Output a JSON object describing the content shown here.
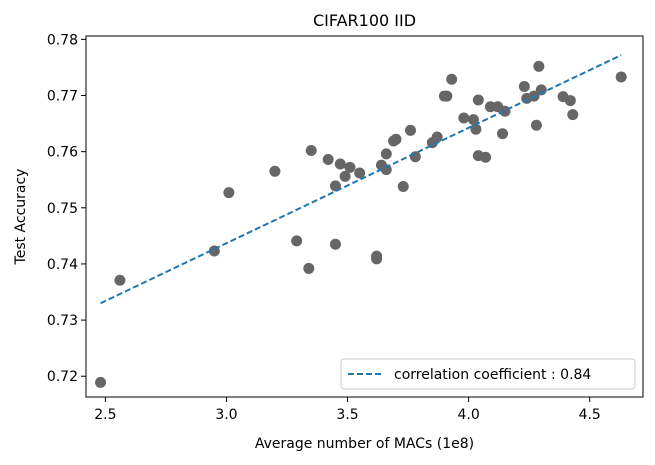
{
  "chart_data": {
    "type": "scatter",
    "title": "CIFAR100 IID",
    "xlabel": "Average number of MACs (1e8)",
    "ylabel": "Test Accuracy",
    "xlim": [
      2.42,
      4.72
    ],
    "ylim": [
      0.7163,
      0.7806
    ],
    "xticks": [
      2.5,
      3.0,
      3.5,
      4.0,
      4.5
    ],
    "xtick_labels": [
      "2.5",
      "3.0",
      "3.5",
      "4.0",
      "4.5"
    ],
    "yticks": [
      0.72,
      0.73,
      0.74,
      0.75,
      0.76,
      0.77,
      0.78
    ],
    "ytick_labels": [
      "0.72",
      "0.73",
      "0.74",
      "0.75",
      "0.76",
      "0.77",
      "0.78"
    ],
    "grid": false,
    "legend_position": "bottom-right",
    "colors": {
      "points": "#666666",
      "fit_line": "#1f77b4"
    },
    "points": [
      [
        2.48,
        0.7189
      ],
      [
        2.56,
        0.7371
      ],
      [
        2.95,
        0.7423
      ],
      [
        3.01,
        0.7527
      ],
      [
        3.2,
        0.7565
      ],
      [
        3.29,
        0.7441
      ],
      [
        3.34,
        0.7392
      ],
      [
        3.35,
        0.7602
      ],
      [
        3.42,
        0.7586
      ],
      [
        3.45,
        0.7539
      ],
      [
        3.45,
        0.7435
      ],
      [
        3.47,
        0.7578
      ],
      [
        3.49,
        0.7556
      ],
      [
        3.51,
        0.7572
      ],
      [
        3.55,
        0.7562
      ],
      [
        3.62,
        0.7414
      ],
      [
        3.62,
        0.7409
      ],
      [
        3.64,
        0.7576
      ],
      [
        3.66,
        0.7596
      ],
      [
        3.66,
        0.7568
      ],
      [
        3.69,
        0.7619
      ],
      [
        3.7,
        0.7622
      ],
      [
        3.73,
        0.7538
      ],
      [
        3.76,
        0.7638
      ],
      [
        3.78,
        0.7591
      ],
      [
        3.85,
        0.7616
      ],
      [
        3.87,
        0.7626
      ],
      [
        3.9,
        0.7699
      ],
      [
        3.91,
        0.7699
      ],
      [
        3.93,
        0.7729
      ],
      [
        3.98,
        0.766
      ],
      [
        4.02,
        0.7657
      ],
      [
        4.03,
        0.764
      ],
      [
        4.04,
        0.7692
      ],
      [
        4.04,
        0.7593
      ],
      [
        4.07,
        0.759
      ],
      [
        4.09,
        0.768
      ],
      [
        4.12,
        0.768
      ],
      [
        4.14,
        0.7632
      ],
      [
        4.15,
        0.7672
      ],
      [
        4.23,
        0.7716
      ],
      [
        4.24,
        0.7695
      ],
      [
        4.27,
        0.7699
      ],
      [
        4.28,
        0.7647
      ],
      [
        4.29,
        0.7752
      ],
      [
        4.3,
        0.771
      ],
      [
        4.39,
        0.7698
      ],
      [
        4.42,
        0.7691
      ],
      [
        4.43,
        0.7666
      ],
      [
        4.63,
        0.7733
      ]
    ],
    "fit_line": [
      [
        2.48,
        0.733
      ],
      [
        4.63,
        0.7772
      ]
    ],
    "series": [
      {
        "name": "correlation coefficient : 0.84",
        "style": "dashed"
      }
    ]
  }
}
